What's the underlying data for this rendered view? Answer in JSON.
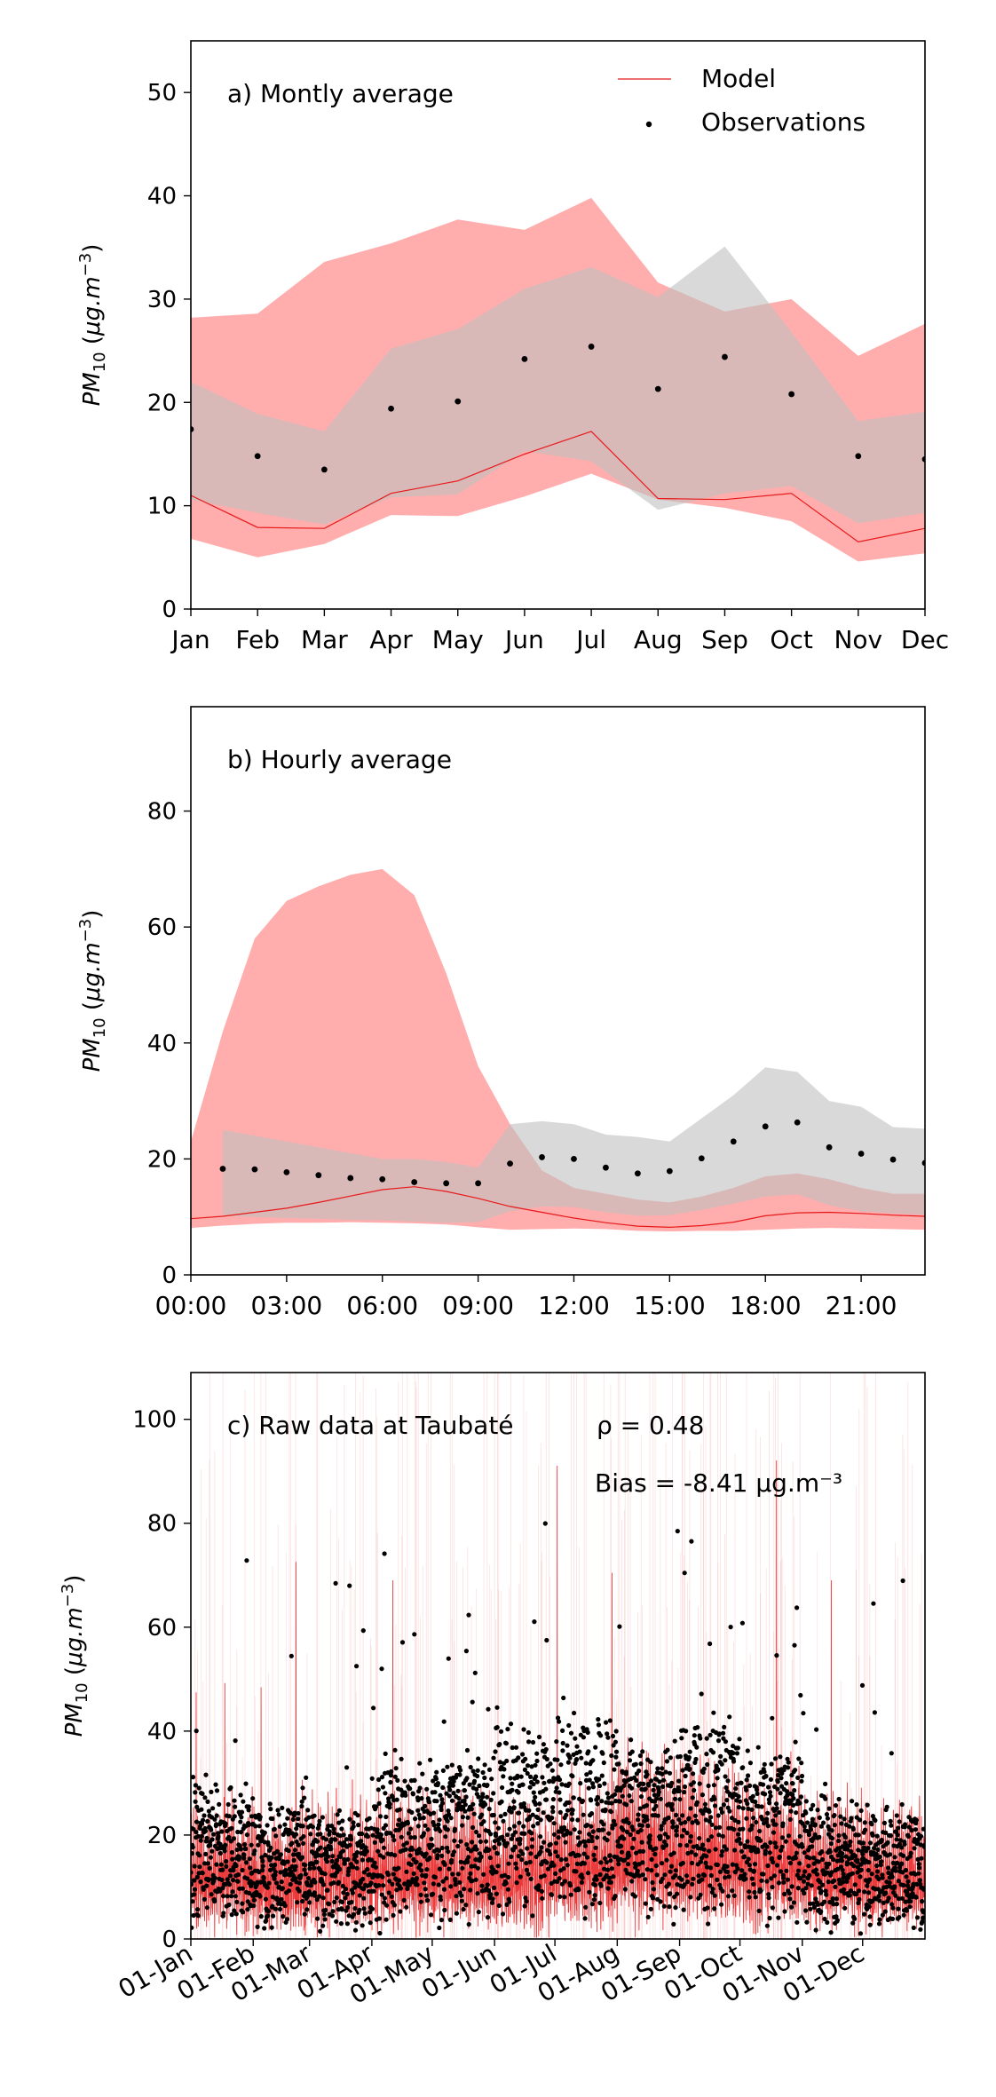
{
  "colors": {
    "model": "#e8191a",
    "model_band": "#ff9999",
    "obs_band": "#c0c0c0",
    "obs": "#000000"
  },
  "chart_data": [
    {
      "type": "line",
      "panel_label": "a) Montly average",
      "ylabel": "PM10 (μg.m⁻³)",
      "ylim": [
        0,
        55
      ],
      "yticks": [
        0,
        10,
        20,
        30,
        40,
        50
      ],
      "categories": [
        "Jan",
        "Feb",
        "Mar",
        "Apr",
        "May",
        "Jun",
        "Jul",
        "Aug",
        "Sep",
        "Oct",
        "Nov",
        "Dec"
      ],
      "legend": {
        "position": "top-right",
        "model_label": "Model",
        "obs_label": "Observations"
      },
      "series": [
        {
          "name": "Model",
          "kind": "line",
          "values": [
            11.0,
            7.9,
            7.8,
            11.2,
            12.4,
            15.0,
            17.2,
            10.7,
            10.6,
            11.2,
            6.5,
            7.8
          ]
        },
        {
          "name": "Observations",
          "kind": "points",
          "values": [
            17.4,
            14.8,
            13.5,
            19.4,
            20.1,
            24.2,
            25.4,
            21.3,
            24.4,
            20.8,
            14.8,
            14.5
          ]
        }
      ],
      "bands": [
        {
          "of": "Model",
          "lower": [
            6.8,
            5.0,
            6.3,
            9.1,
            9.0,
            10.9,
            13.1,
            10.6,
            9.8,
            8.5,
            4.6,
            5.4
          ],
          "upper": [
            28.2,
            28.6,
            33.6,
            35.4,
            37.7,
            36.7,
            39.8,
            31.6,
            28.8,
            30.0,
            24.5,
            27.6
          ]
        },
        {
          "of": "Observations",
          "lower": [
            10.6,
            9.3,
            8.2,
            10.8,
            11.1,
            15.3,
            14.3,
            9.6,
            11.2,
            11.9,
            8.3,
            9.3
          ],
          "upper": [
            22.0,
            18.9,
            17.2,
            25.2,
            27.1,
            31.0,
            33.1,
            30.2,
            35.1,
            26.8,
            18.2,
            19.1
          ]
        }
      ]
    },
    {
      "type": "line",
      "panel_label": "b) Hourly average",
      "ylabel": "PM10 (μg.m⁻³)",
      "ylim": [
        0,
        98
      ],
      "yticks": [
        0,
        20,
        40,
        60,
        80
      ],
      "x": [
        0,
        1,
        2,
        3,
        4,
        5,
        6,
        7,
        8,
        9,
        10,
        11,
        12,
        13,
        14,
        15,
        16,
        17,
        18,
        19,
        20,
        21,
        22,
        23
      ],
      "xlim": [
        0,
        23
      ],
      "xticks": [
        0,
        3,
        6,
        9,
        12,
        15,
        18,
        21
      ],
      "xticklabels": [
        "00:00",
        "03:00",
        "06:00",
        "09:00",
        "12:00",
        "15:00",
        "18:00",
        "21:00"
      ],
      "series": [
        {
          "name": "Model",
          "kind": "line",
          "values": [
            9.7,
            10.1,
            10.8,
            11.5,
            12.5,
            13.6,
            14.7,
            15.2,
            14.4,
            13.2,
            11.8,
            10.8,
            9.8,
            9.0,
            8.4,
            8.2,
            8.5,
            9.1,
            10.2,
            10.7,
            10.8,
            10.6,
            10.3,
            10.1
          ]
        },
        {
          "name": "Observations",
          "kind": "points",
          "values": [
            null,
            18.3,
            18.2,
            17.7,
            17.2,
            16.7,
            16.5,
            16.0,
            15.8,
            15.8,
            19.2,
            20.3,
            20.0,
            18.5,
            17.5,
            17.9,
            20.1,
            23.0,
            25.6,
            26.3,
            22.0,
            20.9,
            19.9,
            19.3
          ]
        }
      ],
      "bands": [
        {
          "of": "Model",
          "lower": [
            8.1,
            8.5,
            8.8,
            9.0,
            9.0,
            9.1,
            9.0,
            8.9,
            8.7,
            8.2,
            7.8,
            7.9,
            8.0,
            7.9,
            7.6,
            7.5,
            7.6,
            7.6,
            7.8,
            8.0,
            8.1,
            8.0,
            7.9,
            7.8
          ],
          "upper": [
            23.0,
            42.0,
            58.0,
            64.5,
            67.0,
            69.0,
            70.0,
            65.5,
            52.0,
            36.0,
            26.0,
            18.0,
            15.0,
            14.0,
            13.0,
            12.5,
            13.5,
            15.0,
            17.0,
            17.5,
            16.5,
            15.0,
            14.0,
            14.0
          ]
        },
        {
          "of": "Observations",
          "lower": [
            null,
            10.2,
            10.0,
            9.8,
            9.7,
            9.5,
            9.4,
            9.2,
            9.0,
            9.1,
            11.0,
            11.8,
            11.7,
            10.8,
            10.2,
            10.3,
            11.2,
            12.3,
            13.5,
            13.9,
            12.0,
            11.0,
            10.6,
            10.4
          ],
          "upper": [
            null,
            25.0,
            24.0,
            23.0,
            22.0,
            21.0,
            20.0,
            20.0,
            19.5,
            18.5,
            26.0,
            26.5,
            26.0,
            24.2,
            23.8,
            23.0,
            27.0,
            31.0,
            35.8,
            35.0,
            30.0,
            29.0,
            25.5,
            25.2
          ]
        }
      ]
    },
    {
      "type": "scatter",
      "panel_label": "c) Raw data at Taubaté",
      "stats": {
        "rho": "ρ = 0.48",
        "bias": "Bias = -8.41 μg.m⁻³"
      },
      "ylabel": "PM10 (μg.m⁻³)",
      "ylim": [
        0,
        109
      ],
      "yticks": [
        0,
        20,
        40,
        60,
        80,
        100
      ],
      "xlim": [
        "01-Jan",
        "31-Dec"
      ],
      "xticklabels": [
        "01-Jan",
        "01-Feb",
        "01-Mar",
        "01-Apr",
        "01-May",
        "01-Jun",
        "01-Jul",
        "01-Aug",
        "01-Sep",
        "01-Oct",
        "01-Nov",
        "01-Dec"
      ],
      "series": [
        {
          "name": "Model",
          "kind": "hourly line",
          "daily_mean": [
            12.0,
            11.5,
            12.5,
            13.0,
            13.0,
            12.5,
            14.0,
            17.0,
            16.0,
            15.0,
            13.0,
            12.0
          ]
        },
        {
          "name": "Observations",
          "kind": "hourly points",
          "daily_mean": [
            17.0,
            15.0,
            13.5,
            19.5,
            20.0,
            24.0,
            25.5,
            21.0,
            24.5,
            21.0,
            15.0,
            14.5
          ]
        }
      ]
    }
  ]
}
